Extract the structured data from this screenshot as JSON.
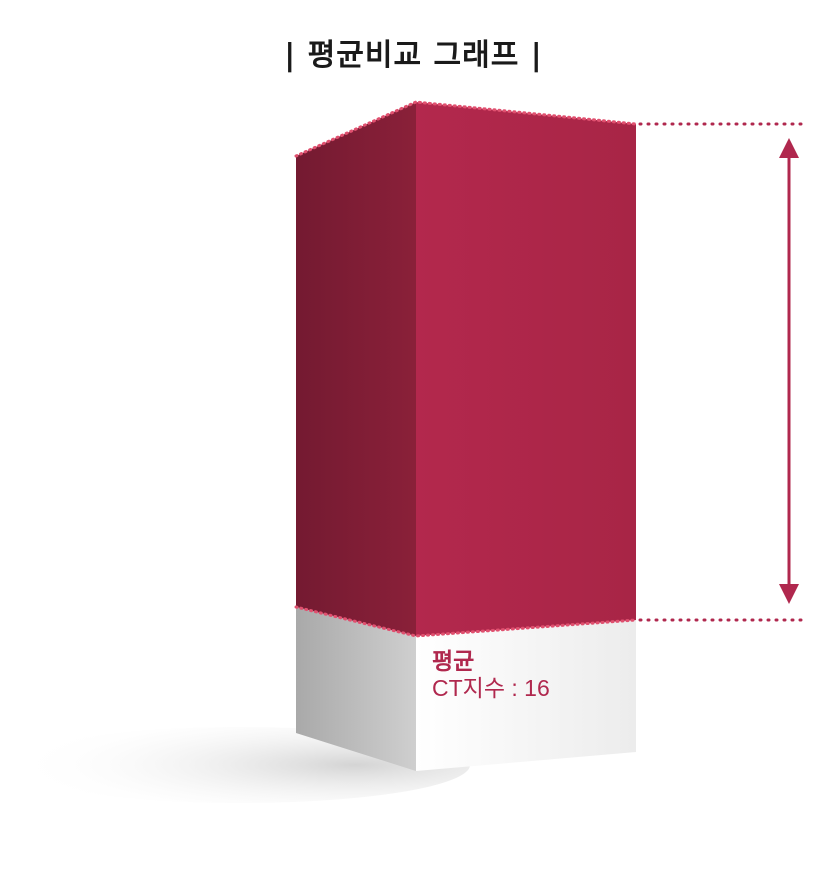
{
  "title": "| 평균비교 그래프 |",
  "base": {
    "label_line1": "평균",
    "label_line2": "CT지수 : 16"
  },
  "colors": {
    "accent": "#b0284e",
    "bar_front": "#ad2749",
    "bar_side": "#7c1c34",
    "base_front": "#f2f2f2",
    "base_side": "#bdbdbd"
  }
}
